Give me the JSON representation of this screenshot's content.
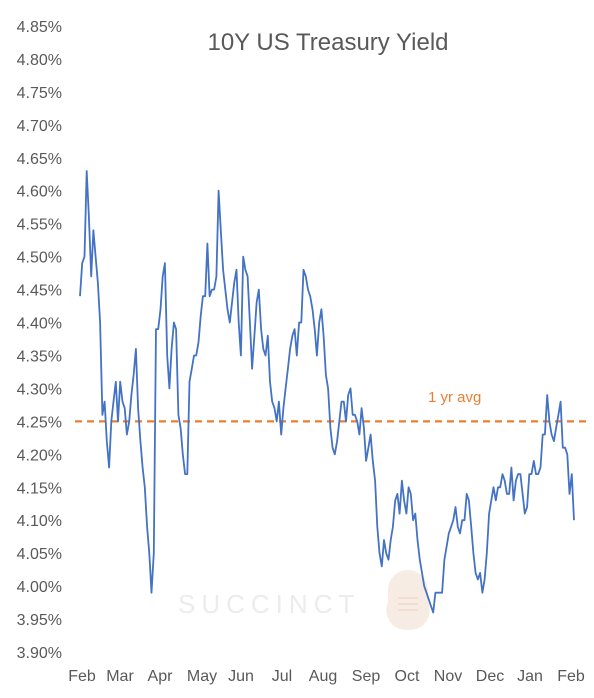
{
  "chart_data": {
    "type": "line",
    "title": "10Y US Treasury Yield",
    "xlabel": "",
    "ylabel": "",
    "y_ticks": [
      "4.85%",
      "4.80%",
      "4.75%",
      "4.70%",
      "4.65%",
      "4.60%",
      "4.55%",
      "4.50%",
      "4.45%",
      "4.40%",
      "4.35%",
      "4.30%",
      "4.25%",
      "4.20%",
      "4.15%",
      "4.10%",
      "4.05%",
      "4.00%",
      "3.95%",
      "3.90%"
    ],
    "ylim": [
      3.9,
      4.85
    ],
    "x_ticks": [
      "Feb",
      "Mar",
      "Apr",
      "May",
      "Jun",
      "Jul",
      "Aug",
      "Sep",
      "Oct",
      "Nov",
      "Dec",
      "Jan",
      "Feb"
    ],
    "grid": false,
    "legend": "none",
    "reference_line": {
      "label": "1 yr avg",
      "value": 4.25,
      "color": "#ed7d31",
      "style": "dashed"
    },
    "watermark": "SUCCINCT",
    "series": [
      {
        "color": "#4472c4",
        "values": [
          4.44,
          4.49,
          4.5,
          4.63,
          4.56,
          4.47,
          4.54,
          4.5,
          4.46,
          4.4,
          4.26,
          4.28,
          4.22,
          4.18,
          4.25,
          4.28,
          4.31,
          4.25,
          4.31,
          4.28,
          4.27,
          4.23,
          4.25,
          4.29,
          4.32,
          4.36,
          4.27,
          4.22,
          4.18,
          4.15,
          4.09,
          4.05,
          3.99,
          4.05,
          4.39,
          4.39,
          4.42,
          4.47,
          4.49,
          4.35,
          4.3,
          4.36,
          4.4,
          4.39,
          4.26,
          4.24,
          4.2,
          4.17,
          4.17,
          4.31,
          4.33,
          4.35,
          4.35,
          4.37,
          4.41,
          4.44,
          4.44,
          4.52,
          4.44,
          4.45,
          4.45,
          4.47,
          4.6,
          4.54,
          4.48,
          4.45,
          4.42,
          4.4,
          4.43,
          4.46,
          4.48,
          4.4,
          4.35,
          4.5,
          4.48,
          4.47,
          4.4,
          4.33,
          4.38,
          4.43,
          4.45,
          4.39,
          4.36,
          4.35,
          4.38,
          4.31,
          4.28,
          4.27,
          4.25,
          4.28,
          4.23,
          4.27,
          4.3,
          4.33,
          4.36,
          4.38,
          4.39,
          4.35,
          4.4,
          4.4,
          4.48,
          4.47,
          4.45,
          4.44,
          4.42,
          4.39,
          4.35,
          4.4,
          4.42,
          4.38,
          4.32,
          4.3,
          4.24,
          4.21,
          4.2,
          4.22,
          4.25,
          4.28,
          4.28,
          4.25,
          4.29,
          4.3,
          4.26,
          4.26,
          4.25,
          4.23,
          4.27,
          4.24,
          4.19,
          4.21,
          4.23,
          4.19,
          4.16,
          4.09,
          4.05,
          4.03,
          4.07,
          4.05,
          4.04,
          4.07,
          4.09,
          4.13,
          4.14,
          4.11,
          4.16,
          4.13,
          4.11,
          4.15,
          4.14,
          4.1,
          4.11,
          4.07,
          4.04,
          4.02,
          4.0,
          3.99,
          3.98,
          3.97,
          3.96,
          3.99,
          3.99,
          3.99,
          3.99,
          4.04,
          4.06,
          4.08,
          4.09,
          4.1,
          4.12,
          4.09,
          4.08,
          4.1,
          4.1,
          4.14,
          4.13,
          4.09,
          4.05,
          4.02,
          4.01,
          4.02,
          3.99,
          4.01,
          4.05,
          4.11,
          4.13,
          4.15,
          4.13,
          4.15,
          4.15,
          4.17,
          4.16,
          4.14,
          4.14,
          4.18,
          4.13,
          4.16,
          4.17,
          4.17,
          4.14,
          4.11,
          4.12,
          4.17,
          4.17,
          4.19,
          4.17,
          4.17,
          4.18,
          4.23,
          4.23,
          4.29,
          4.25,
          4.23,
          4.22,
          4.24,
          4.26,
          4.28,
          4.21,
          4.21,
          4.2,
          4.14,
          4.17,
          4.1
        ]
      }
    ]
  }
}
